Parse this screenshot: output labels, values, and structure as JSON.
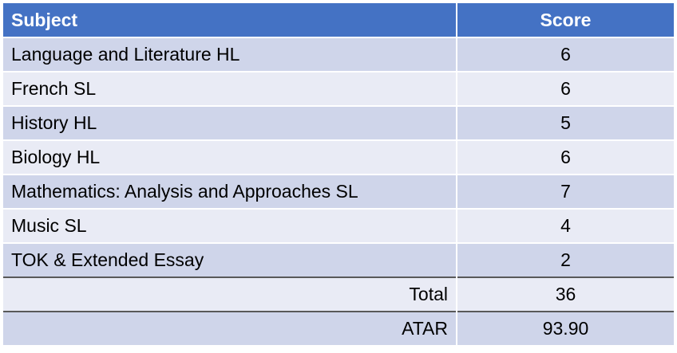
{
  "table": {
    "headers": {
      "subject": "Subject",
      "score": "Score"
    },
    "rows": [
      {
        "subject": "Language and Literature HL",
        "score": "6"
      },
      {
        "subject": "French SL",
        "score": "6"
      },
      {
        "subject": "History HL",
        "score": "5"
      },
      {
        "subject": "Biology HL",
        "score": "6"
      },
      {
        "subject": "Mathematics: Analysis and Approaches SL",
        "score": "7"
      },
      {
        "subject": "Music SL",
        "score": "4"
      },
      {
        "subject": "TOK & Extended Essay",
        "score": "2"
      }
    ],
    "total": {
      "label": "Total",
      "value": "36"
    },
    "atar": {
      "label": "ATAR",
      "value": "93.90"
    }
  },
  "colors": {
    "header": "#4472c4",
    "row_odd": "#cfd5ea",
    "row_even": "#e9ebf5",
    "summary_border": "#595959"
  }
}
